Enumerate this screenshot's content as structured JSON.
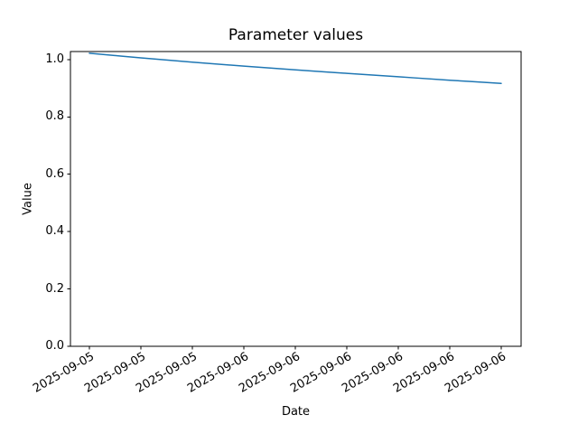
{
  "figure": {
    "background": "#ffffff"
  },
  "chart_data": {
    "type": "line",
    "title": "Parameter values",
    "xlabel": "Date",
    "ylabel": "Value",
    "x_tick_labels": [
      "2025-09-05",
      "2025-09-05",
      "2025-09-05",
      "2025-09-06",
      "2025-09-06",
      "2025-09-06",
      "2025-09-06",
      "2025-09-06",
      "2025-09-06"
    ],
    "y_ticks": [
      0.0,
      0.2,
      0.4,
      0.6,
      0.8,
      1.0
    ],
    "y_tick_labels": [
      "0.0",
      "0.2",
      "0.4",
      "0.6",
      "0.8",
      "1.0"
    ],
    "values": [
      1.022,
      1.006,
      0.991,
      0.977,
      0.964,
      0.952,
      0.94,
      0.928,
      0.917
    ],
    "ylim": [
      0.0,
      1.028
    ],
    "grid": false,
    "legend": "none",
    "line_color": "#1f77b4",
    "axis_color": "#000000",
    "x_tick_rotation_deg": 30
  }
}
